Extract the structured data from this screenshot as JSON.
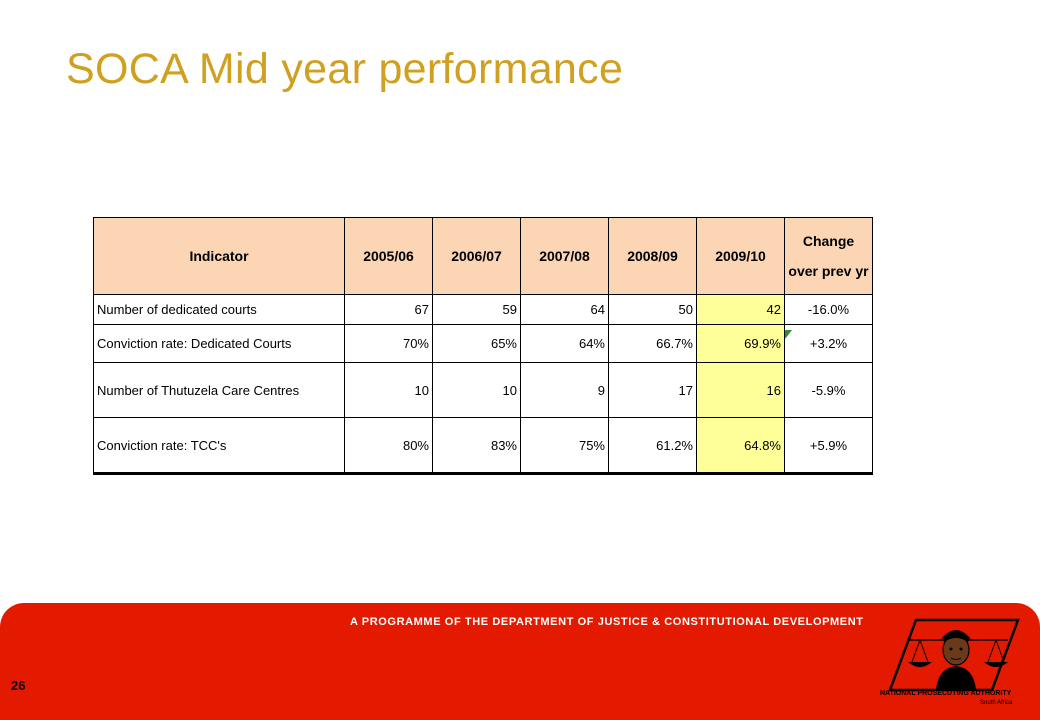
{
  "slide": {
    "title": "SOCA Mid year performance",
    "page_number": "26",
    "footer_text": "A PROGRAMME OF THE DEPARTMENT OF JUSTICE & CONSTITUTIONAL DEVELOPMENT",
    "logo": {
      "line1": "NATIONAL PROSECUTING AUTHORITY",
      "line2": "South Africa"
    }
  },
  "table": {
    "headers": {
      "indicator": "Indicator",
      "y1": "2005/06",
      "y2": "2006/07",
      "y3": "2007/08",
      "y4": "2008/09",
      "y5": "2009/10",
      "change": "Change over prev yr"
    },
    "rows": [
      {
        "indicator": "Number of dedicated courts",
        "y1": "67",
        "y2": "59",
        "y3": "64",
        "y4": "50",
        "y5": "42",
        "change": "-16.0%"
      },
      {
        "indicator": "Conviction rate:  Dedicated Courts",
        "y1": "70%",
        "y2": "65%",
        "y3": "64%",
        "y4": "66.7%",
        "y5": "69.9%",
        "change": "+3.2%"
      },
      {
        "indicator": "Number of Thutuzela Care Centres",
        "y1": "10",
        "y2": "10",
        "y3": "9",
        "y4": "17",
        "y5": "16",
        "change": "-5.9%"
      },
      {
        "indicator": "Conviction rate:  TCC's",
        "y1": "80%",
        "y2": "83%",
        "y3": "75%",
        "y4": "61.2%",
        "y5": "64.8%",
        "change": "+5.9%"
      }
    ]
  },
  "colors": {
    "title": "#d0a020",
    "header_fill": "#fcd5b5",
    "highlight_fill": "#ffff99",
    "footer_band": "#e41a00"
  }
}
